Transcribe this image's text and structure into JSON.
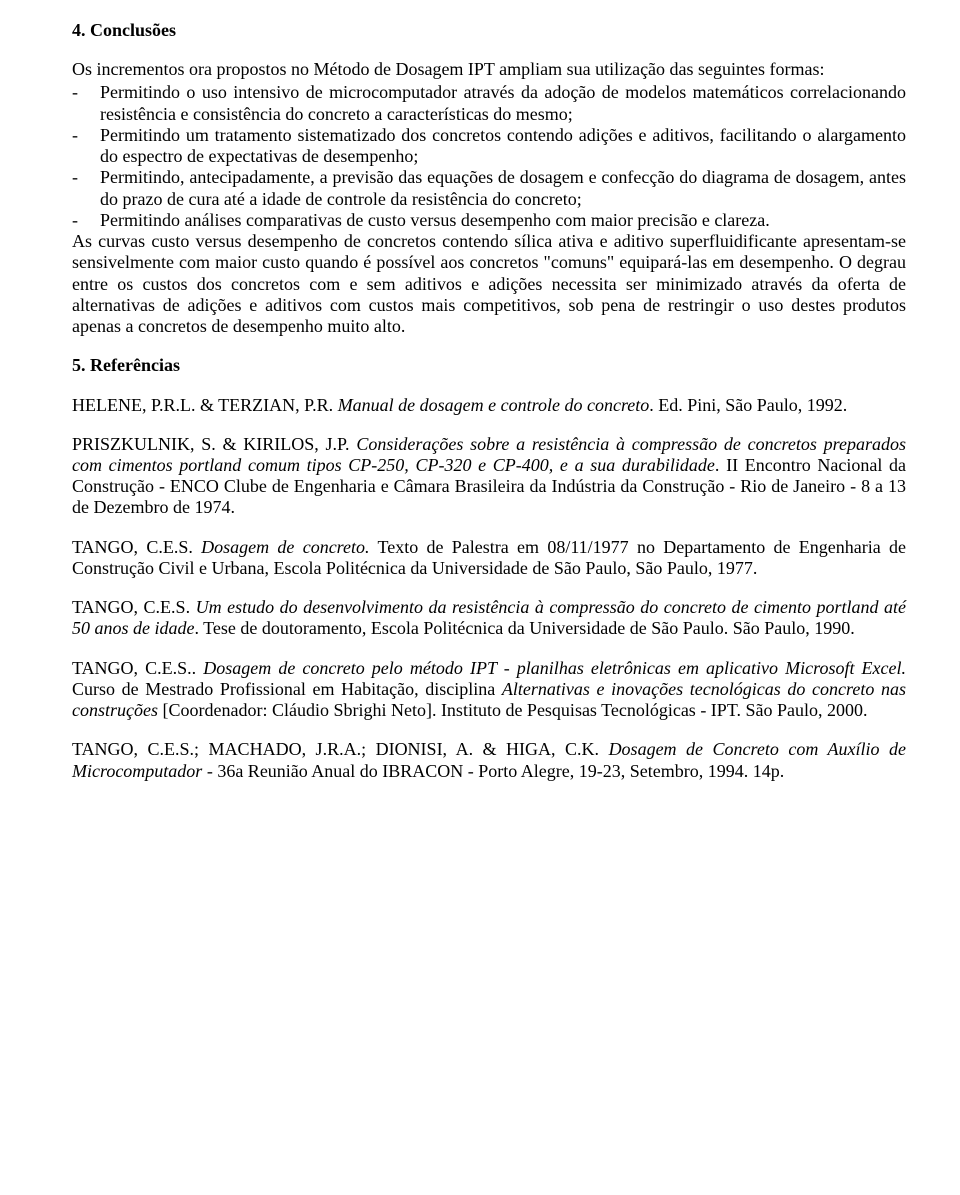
{
  "section4": {
    "heading": "4.   Conclusões",
    "intro": "Os incrementos ora propostos no Método de Dosagem IPT ampliam sua utilização das seguintes formas:",
    "bullets": [
      "Permitindo o uso intensivo de microcomputador através da adoção de modelos matemáticos correlacionando resistência e consistência do concreto a características do mesmo;",
      "Permitindo um tratamento sistematizado dos concretos contendo adições e aditivos, facilitando o alargamento do espectro de expectativas de desempenho;",
      "Permitindo, antecipadamente, a previsão das equações de dosagem e confecção do diagrama de dosagem, antes do prazo de cura até a idade de controle da resistência do concreto;",
      "Permitindo análises comparativas de custo versus desempenho com maior precisão e clareza."
    ],
    "tail": "As curvas custo versus desempenho de concretos contendo sílica ativa e aditivo superfluidificante apresentam-se sensivelmente com maior custo quando é possível aos concretos \"comuns\" equipará-las em desempenho.  O degrau entre os custos dos concretos com e sem aditivos e adições necessita ser minimizado através da oferta de alternativas de adições e aditivos com custos mais competitivos, sob pena de restringir o uso destes produtos apenas a concretos de desempenho muito alto."
  },
  "section5": {
    "heading": "5.   Referências",
    "refs": [
      {
        "pre": "HELENE, P.R.L. & TERZIAN, P.R.  ",
        "title": "Manual de dosagem e controle do concreto",
        "post": ". Ed. Pini, São Paulo, 1992."
      },
      {
        "pre": "PRISZKULNIK, S.  & KIRILOS, J.P.   ",
        "title": "Considerações sobre a resistência à compressão de concretos preparados com cimentos portland comum tipos CP-250, CP-320 e CP-400, e a sua durabilidade",
        "post": ".   II Encontro Nacional da Construção - ENCO Clube de Engenharia e Câmara Brasileira da Indústria da Construção - Rio de Janeiro - 8 a 13 de Dezembro de 1974."
      },
      {
        "pre": "TANGO, C.E.S. ",
        "title": "Dosagem de concreto.",
        "post": " Texto de Palestra em 08/11/1977 no Departamento de Engenharia de Construção Civil e Urbana, Escola Politécnica da Universidade de São Paulo, São Paulo, 1977."
      },
      {
        "pre": "TANGO, C.E.S. ",
        "title": "Um estudo do desenvolvimento da resistência à compressão do concreto de cimento portland até 50 anos de idade",
        "post": ".  Tese de doutoramento, Escola Politécnica da Universidade de São Paulo.  São Paulo, 1990."
      },
      {
        "pre": "TANGO, C.E.S.. ",
        "title": "Dosagem de concreto pelo método IPT - planilhas eletrônicas em aplicativo Microsoft Excel.",
        "post_pre": " Curso de Mestrado Profissional em Habitação, disciplina ",
        "post_italic": "Alternativas e inovações tecnológicas do concreto nas construções",
        "post_after": " [Coordenador: Cláudio Sbrighi Neto].  Instituto de Pesquisas Tecnológicas - IPT. São Paulo, 2000."
      },
      {
        "pre": "TANGO, C.E.S.; MACHADO, J.R.A.; DIONISI, A. & HIGA, C.K. ",
        "title": "Dosagem de Concreto com Auxílio de Microcomputador",
        "post": " - 36a Reunião Anual do IBRACON - Porto Alegre, 19-23, Setembro, 1994. 14p."
      }
    ]
  }
}
